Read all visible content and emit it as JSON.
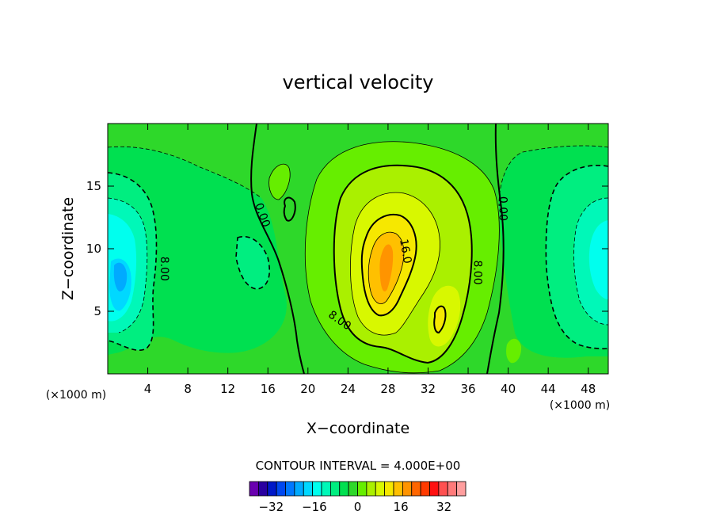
{
  "chart_data": {
    "type": "heatmap",
    "subtype": "filled-contour",
    "title": "vertical velocity",
    "xlabel": "X−coordinate",
    "ylabel": "Z−coordinate",
    "x_unit_note": "(×1000 m)",
    "y_unit_note": "(×1000 m)",
    "xlim": [
      0,
      50
    ],
    "ylim": [
      0,
      20
    ],
    "x_ticks": [
      4,
      8,
      12,
      16,
      20,
      24,
      28,
      32,
      36,
      40,
      44,
      48
    ],
    "x_tick_labels": [
      "4",
      "8",
      "12",
      "16",
      "20",
      "24",
      "28",
      "32",
      "36",
      "40",
      "44",
      "48"
    ],
    "y_ticks": [
      5,
      10,
      15
    ],
    "y_tick_labels": [
      "5",
      "10",
      "15"
    ],
    "contour_interval_text": "CONTOUR INTERVAL = 4.000E+00",
    "contour_interval": 4.0,
    "contour_labels": [
      {
        "text": "0.00",
        "x": 15.5,
        "z": 12.7,
        "angle": 70
      },
      {
        "text": "0.00",
        "x": 39.5,
        "z": 13.2,
        "angle": 90
      },
      {
        "text": "8.00",
        "x": 5.7,
        "z": 8.4,
        "angle": 90
      },
      {
        "text": "8.00",
        "x": 37.0,
        "z": 8.1,
        "angle": 90
      },
      {
        "text": "8.00",
        "x": 23.2,
        "z": 4.3,
        "angle": 35
      },
      {
        "text": "16.0",
        "x": 29.8,
        "z": 9.8,
        "angle": 80
      }
    ],
    "colorbar": {
      "min": -40,
      "max": 40,
      "step": 4,
      "tick_values": [
        -32,
        -16,
        0,
        16,
        32
      ],
      "tick_labels": [
        "−32",
        "−16",
        "0",
        "16",
        "32"
      ],
      "colors": [
        "#6a00b0",
        "#2a00a0",
        "#0018c8",
        "#0048f0",
        "#0078ff",
        "#00aaff",
        "#00d8ff",
        "#00ffee",
        "#00f8b8",
        "#00ee80",
        "#00e050",
        "#2ed82a",
        "#66ee00",
        "#aaf000",
        "#d8f800",
        "#f6e800",
        "#ffc000",
        "#ff9400",
        "#ff6600",
        "#ff3a00",
        "#ff1010",
        "#ff5050",
        "#ff7a7a",
        "#ff9e9e"
      ]
    }
  }
}
